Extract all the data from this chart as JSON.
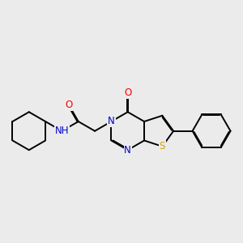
{
  "background_color": "#ebebeb",
  "bond_color": "#000000",
  "atom_colors": {
    "N": "#0000cc",
    "O": "#ff0000",
    "S": "#ccaa00",
    "H": "#3d8080",
    "C": "#000000"
  },
  "figsize": [
    3.0,
    3.0
  ],
  "dpi": 100,
  "lw": 1.4
}
